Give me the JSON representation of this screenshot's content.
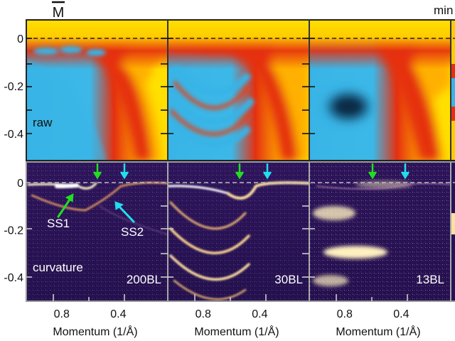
{
  "figure": {
    "top_label_left": "M",
    "top_label_right": "min",
    "top_panel_label": "raw",
    "bottom_panel_label": "curvature",
    "annotations": {
      "ss1": "SS1",
      "ss2": "SS2"
    },
    "arrow_colors": {
      "green": "#22dd22",
      "cyan": "#22ddee"
    },
    "colors": {
      "raw_yellow": "#ffe000",
      "raw_red": "#e53010",
      "raw_cyan": "#38b4e6",
      "raw_dark": "#0a3050",
      "curv_bg": "#2a1258",
      "curv_band": "#fff4c8",
      "frame": "#888888"
    }
  },
  "chart_data": [
    {
      "type": "heatmap",
      "panel": "raw",
      "columns": [
        "200BL",
        "30BL",
        "13BL"
      ],
      "yticks": [
        0,
        -0.2,
        -0.4
      ],
      "ytick_labels": [
        "0",
        "-0.2",
        "-0.4"
      ],
      "xticks": [
        0.8,
        0.4
      ],
      "xtick_labels": [
        "0.8",
        "0.4"
      ],
      "xlabel": "Momentum (1/Å)",
      "ylim": [
        -0.5,
        0.07
      ],
      "xlim": [
        1.05,
        0.05
      ]
    },
    {
      "type": "heatmap",
      "panel": "curvature",
      "columns": [
        "200BL",
        "30BL",
        "13BL"
      ],
      "column_labels": [
        "200BL",
        "30BL",
        "13BL"
      ],
      "yticks": [
        0,
        -0.2,
        -0.4
      ],
      "ytick_labels": [
        "0",
        "-0.2",
        "-0.4"
      ],
      "xticks": [
        0.8,
        0.4
      ],
      "xtick_labels": [
        "0.8",
        "0.4"
      ],
      "xlabel": "Momentum (1/Å)",
      "ylim": [
        -0.5,
        0.07
      ],
      "xlim": [
        1.05,
        0.05
      ],
      "arrows": [
        {
          "color": "green",
          "momentum": 0.6
        },
        {
          "color": "cyan",
          "momentum": 0.37
        }
      ]
    }
  ]
}
